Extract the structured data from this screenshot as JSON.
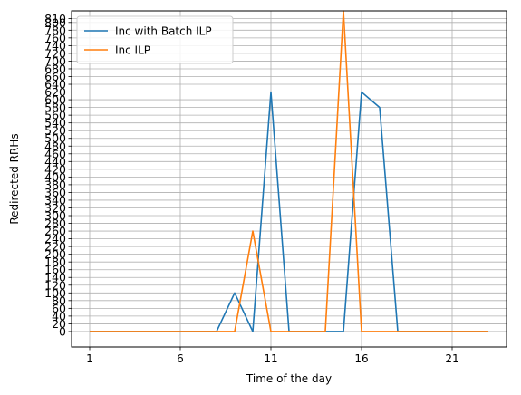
{
  "chart_data": {
    "type": "line",
    "title": "",
    "xlabel": "Time of the day",
    "ylabel": "Redirected RRHs",
    "x": [
      1,
      2,
      3,
      4,
      5,
      6,
      7,
      8,
      9,
      10,
      11,
      12,
      13,
      14,
      15,
      16,
      17,
      18,
      19,
      20,
      21,
      22,
      23
    ],
    "xticks": [
      1,
      6,
      11,
      16,
      21
    ],
    "xlim": [
      0.0,
      24.0
    ],
    "ylim": [
      -40,
      830
    ],
    "yticks": [
      0,
      20,
      40,
      60,
      80,
      100,
      120,
      140,
      160,
      180,
      200,
      220,
      240,
      260,
      280,
      300,
      320,
      340,
      360,
      380,
      400,
      420,
      440,
      460,
      480,
      500,
      520,
      540,
      560,
      580,
      600,
      620,
      640,
      660,
      680,
      700,
      720,
      740,
      760,
      780,
      800,
      810
    ],
    "grid": true,
    "legend_position": "top-left",
    "series": [
      {
        "name": "Inc with Batch ILP",
        "color": "#1f77b4",
        "values": [
          0,
          0,
          0,
          0,
          0,
          0,
          0,
          0,
          100,
          0,
          620,
          0,
          0,
          0,
          0,
          620,
          580,
          0,
          0,
          0,
          0,
          0,
          0
        ]
      },
      {
        "name": "Inc ILP",
        "color": "#ff7f0e",
        "values": [
          0,
          0,
          0,
          0,
          0,
          0,
          0,
          0,
          0,
          260,
          0,
          0,
          0,
          0,
          830,
          0,
          0,
          0,
          0,
          0,
          0,
          0,
          0
        ]
      }
    ]
  }
}
